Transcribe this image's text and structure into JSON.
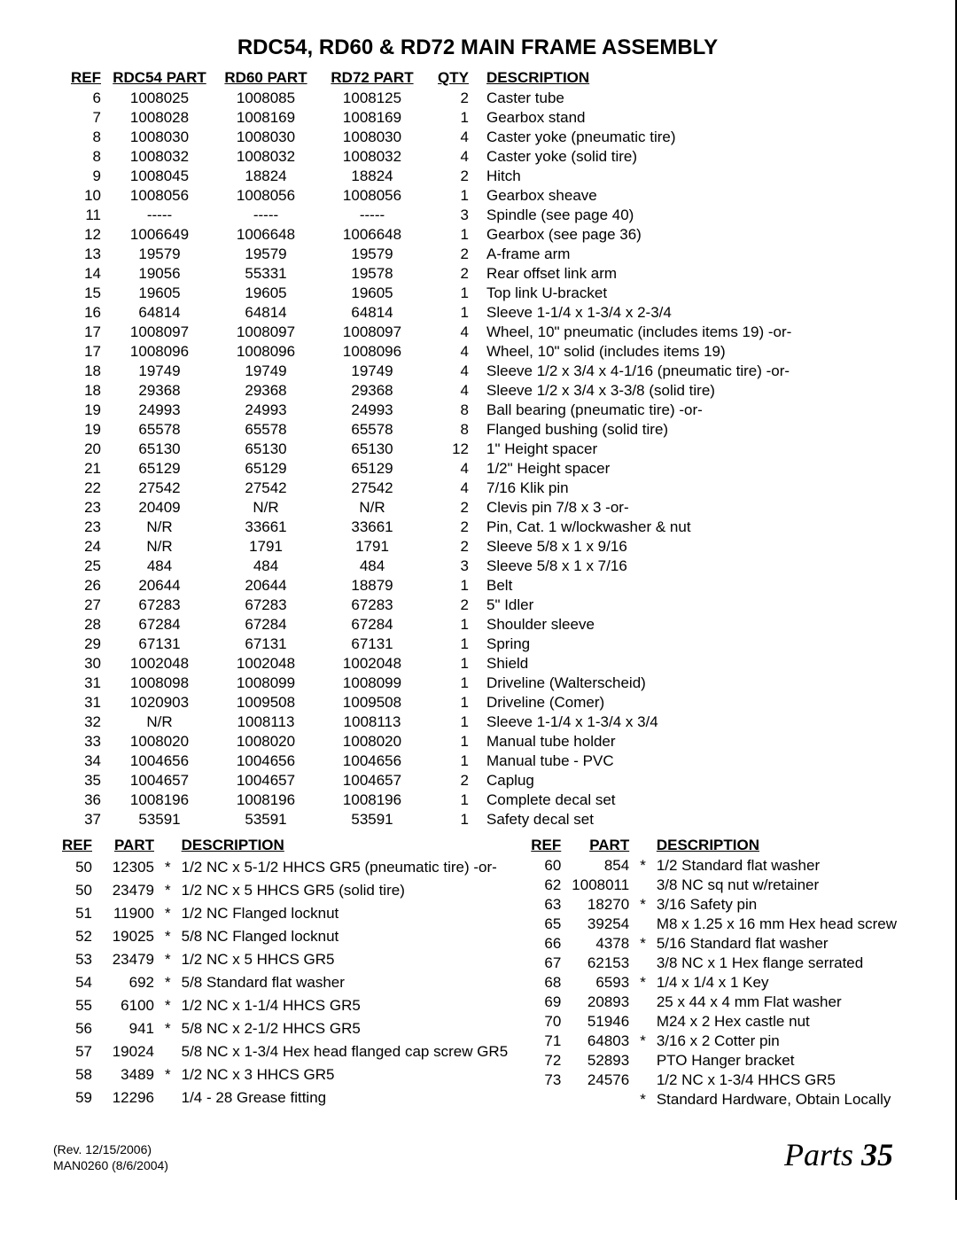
{
  "title": "RDC54, RD60 & RD72  MAIN FRAME ASSEMBLY",
  "main_headers": {
    "ref": "REF",
    "p54": "RDC54 PART",
    "p60": "RD60 PART",
    "p72": "RD72 PART",
    "qty": "QTY",
    "desc": "DESCRIPTION"
  },
  "main_rows": [
    {
      "ref": "6",
      "p54": "1008025",
      "p60": "1008085",
      "p72": "1008125",
      "qty": "2",
      "desc": "Caster tube"
    },
    {
      "ref": "7",
      "p54": "1008028",
      "p60": "1008169",
      "p72": "1008169",
      "qty": "1",
      "desc": "Gearbox stand"
    },
    {
      "ref": "8",
      "p54": "1008030",
      "p60": "1008030",
      "p72": "1008030",
      "qty": "4",
      "desc": "Caster yoke (pneumatic tire)"
    },
    {
      "ref": "8",
      "p54": "1008032",
      "p60": "1008032",
      "p72": "1008032",
      "qty": "4",
      "desc": "Caster yoke (solid tire)"
    },
    {
      "ref": "9",
      "p54": "1008045",
      "p60": "18824",
      "p72": "18824",
      "qty": "2",
      "desc": "Hitch"
    },
    {
      "ref": "10",
      "p54": "1008056",
      "p60": "1008056",
      "p72": "1008056",
      "qty": "1",
      "desc": "Gearbox sheave"
    },
    {
      "ref": "11",
      "p54": "-----",
      "p60": "-----",
      "p72": "-----",
      "qty": "3",
      "desc": "Spindle (see page 40)"
    },
    {
      "ref": "12",
      "p54": "1006649",
      "p60": "1006648",
      "p72": "1006648",
      "qty": "1",
      "desc": "Gearbox (see page 36)"
    },
    {
      "ref": "13",
      "p54": "19579",
      "p60": "19579",
      "p72": "19579",
      "qty": "2",
      "desc": "A-frame arm"
    },
    {
      "ref": "14",
      "p54": "19056",
      "p60": "55331",
      "p72": "19578",
      "qty": "2",
      "desc": "Rear offset link arm"
    },
    {
      "ref": "15",
      "p54": "19605",
      "p60": "19605",
      "p72": "19605",
      "qty": "1",
      "desc": "Top link U-bracket"
    },
    {
      "ref": "16",
      "p54": "64814",
      "p60": "64814",
      "p72": "64814",
      "qty": "1",
      "desc": "Sleeve 1-1/4 x 1-3/4 x 2-3/4"
    },
    {
      "ref": "17",
      "p54": "1008097",
      "p60": "1008097",
      "p72": "1008097",
      "qty": "4",
      "desc": "Wheel, 10\" pneumatic (includes items 19) -or-"
    },
    {
      "ref": "17",
      "p54": "1008096",
      "p60": "1008096",
      "p72": "1008096",
      "qty": "4",
      "desc": "Wheel, 10\" solid (includes items 19)"
    },
    {
      "ref": "18",
      "p54": "19749",
      "p60": "19749",
      "p72": "19749",
      "qty": "4",
      "desc": "Sleeve 1/2 x 3/4 x 4-1/16 (pneumatic tire) -or-"
    },
    {
      "ref": "18",
      "p54": "29368",
      "p60": "29368",
      "p72": "29368",
      "qty": "4",
      "desc": "Sleeve 1/2 x 3/4 x 3-3/8 (solid tire)"
    },
    {
      "ref": "19",
      "p54": "24993",
      "p60": "24993",
      "p72": "24993",
      "qty": "8",
      "desc": "Ball bearing (pneumatic tire) -or-"
    },
    {
      "ref": "19",
      "p54": "65578",
      "p60": "65578",
      "p72": "65578",
      "qty": "8",
      "desc": "Flanged bushing (solid tire)"
    },
    {
      "ref": "20",
      "p54": "65130",
      "p60": "65130",
      "p72": "65130",
      "qty": "12",
      "desc": "1\" Height spacer"
    },
    {
      "ref": "21",
      "p54": "65129",
      "p60": "65129",
      "p72": "65129",
      "qty": "4",
      "desc": "1/2\" Height spacer"
    },
    {
      "ref": "22",
      "p54": "27542",
      "p60": "27542",
      "p72": "27542",
      "qty": "4",
      "desc": "7/16 Klik pin"
    },
    {
      "ref": "23",
      "p54": "20409",
      "p60": "N/R",
      "p72": "N/R",
      "qty": "2",
      "desc": "Clevis pin 7/8 x 3 -or-"
    },
    {
      "ref": "23",
      "p54": "N/R",
      "p60": "33661",
      "p72": "33661",
      "qty": "2",
      "desc": "Pin, Cat. 1 w/lockwasher & nut"
    },
    {
      "ref": "24",
      "p54": "N/R",
      "p60": "1791",
      "p72": "1791",
      "qty": "2",
      "desc": "Sleeve 5/8 x 1 x 9/16"
    },
    {
      "ref": "25",
      "p54": "484",
      "p60": "484",
      "p72": "484",
      "qty": "3",
      "desc": "Sleeve 5/8 x 1 x 7/16"
    },
    {
      "ref": "26",
      "p54": "20644",
      "p60": "20644",
      "p72": "18879",
      "qty": "1",
      "desc": "Belt"
    },
    {
      "ref": "27",
      "p54": "67283",
      "p60": "67283",
      "p72": "67283",
      "qty": "2",
      "desc": "5\" Idler"
    },
    {
      "ref": "28",
      "p54": "67284",
      "p60": "67284",
      "p72": "67284",
      "qty": "1",
      "desc": "Shoulder sleeve"
    },
    {
      "ref": "29",
      "p54": "67131",
      "p60": "67131",
      "p72": "67131",
      "qty": "1",
      "desc": "Spring"
    },
    {
      "ref": "30",
      "p54": "1002048",
      "p60": "1002048",
      "p72": "1002048",
      "qty": "1",
      "desc": "Shield"
    },
    {
      "ref": "31",
      "p54": "1008098",
      "p60": "1008099",
      "p72": "1008099",
      "qty": "1",
      "desc": "Driveline (Walterscheid)"
    },
    {
      "ref": "31",
      "p54": "1020903",
      "p60": "1009508",
      "p72": "1009508",
      "qty": "1",
      "desc": "Driveline (Comer)"
    },
    {
      "ref": "32",
      "p54": "N/R",
      "p60": "1008113",
      "p72": "1008113",
      "qty": "1",
      "desc": "Sleeve 1-1/4 x 1-3/4 x 3/4"
    },
    {
      "ref": "33",
      "p54": "1008020",
      "p60": "1008020",
      "p72": "1008020",
      "qty": "1",
      "desc": "Manual tube holder"
    },
    {
      "ref": "34",
      "p54": "1004656",
      "p60": "1004656",
      "p72": "1004656",
      "qty": "1",
      "desc": "Manual tube - PVC"
    },
    {
      "ref": "35",
      "p54": "1004657",
      "p60": "1004657",
      "p72": "1004657",
      "qty": "2",
      "desc": "Caplug"
    },
    {
      "ref": "36",
      "p54": "1008196",
      "p60": "1008196",
      "p72": "1008196",
      "qty": "1",
      "desc": "Complete decal set"
    },
    {
      "ref": "37",
      "p54": "53591",
      "p60": "53591",
      "p72": "53591",
      "qty": "1",
      "desc": "Safety decal set"
    }
  ],
  "lower_headers": {
    "ref": "REF",
    "part": "PART",
    "desc": "DESCRIPTION"
  },
  "lower_left_rows": [
    {
      "ref": "50",
      "part": "12305",
      "star": "*",
      "desc": "1/2 NC x 5-1/2 HHCS GR5 (pneumatic tire) -or-"
    },
    {
      "ref": "50",
      "part": "23479",
      "star": "*",
      "desc": "1/2 NC x 5 HHCS GR5 (solid tire)"
    },
    {
      "ref": "51",
      "part": "11900",
      "star": "*",
      "desc": "1/2 NC Flanged locknut"
    },
    {
      "ref": "52",
      "part": "19025",
      "star": "*",
      "desc": "5/8 NC Flanged locknut"
    },
    {
      "ref": "53",
      "part": "23479",
      "star": "*",
      "desc": "1/2 NC x 5 HHCS GR5"
    },
    {
      "ref": "54",
      "part": "692",
      "star": "*",
      "desc": "5/8 Standard flat washer"
    },
    {
      "ref": "55",
      "part": "6100",
      "star": "*",
      "desc": "1/2 NC x 1-1/4 HHCS GR5"
    },
    {
      "ref": "56",
      "part": "941",
      "star": "*",
      "desc": "5/8 NC x 2-1/2 HHCS GR5"
    },
    {
      "ref": "57",
      "part": "19024",
      "star": "",
      "desc": "5/8 NC x 1-3/4 Hex head flanged cap screw GR5"
    },
    {
      "ref": "58",
      "part": "3489",
      "star": "*",
      "desc": "1/2 NC x 3 HHCS GR5"
    },
    {
      "ref": "59",
      "part": "12296",
      "star": "",
      "desc": "1/4 - 28 Grease fitting"
    }
  ],
  "lower_right_rows": [
    {
      "ref": "60",
      "part": "854",
      "star": "*",
      "desc": "1/2 Standard flat washer"
    },
    {
      "ref": "62",
      "part": "1008011",
      "star": "",
      "desc": "3/8 NC sq nut w/retainer"
    },
    {
      "ref": "63",
      "part": "18270",
      "star": "*",
      "desc": "3/16 Safety pin"
    },
    {
      "ref": "65",
      "part": "39254",
      "star": "",
      "desc": "M8 x 1.25 x 16 mm Hex head screw"
    },
    {
      "ref": "66",
      "part": "4378",
      "star": "*",
      "desc": "5/16 Standard flat washer"
    },
    {
      "ref": "67",
      "part": "62153",
      "star": "",
      "desc": "3/8 NC x 1 Hex flange serrated"
    },
    {
      "ref": "68",
      "part": "6593",
      "star": "*",
      "desc": "1/4 x 1/4 x 1 Key"
    },
    {
      "ref": "69",
      "part": "20893",
      "star": "",
      "desc": "25 x 44 x 4 mm Flat washer"
    },
    {
      "ref": "70",
      "part": "51946",
      "star": "",
      "desc": "M24 x 2 Hex castle nut"
    },
    {
      "ref": "71",
      "part": "64803",
      "star": "*",
      "desc": "3/16 x 2 Cotter pin"
    },
    {
      "ref": "72",
      "part": "52893",
      "star": "",
      "desc": "PTO Hanger bracket"
    },
    {
      "ref": "73",
      "part": "24576",
      "star": "",
      "desc": "1/2 NC x 1-3/4 HHCS GR5"
    }
  ],
  "std_hw_note": {
    "star": "*",
    "text": "Standard Hardware, Obtain Locally"
  },
  "footer": {
    "rev": "(Rev. 12/15/2006)",
    "man": "MAN0260 (8/6/2004)",
    "section": "Parts",
    "page": "35"
  }
}
